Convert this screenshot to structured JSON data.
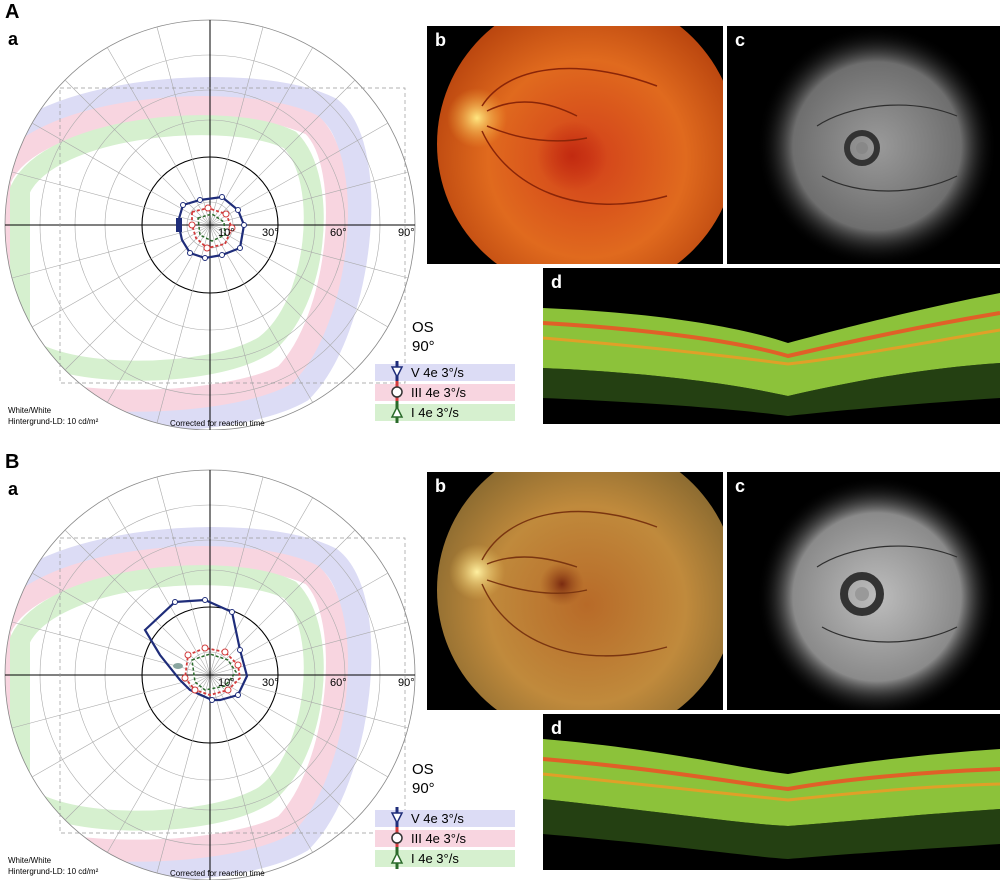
{
  "figure": {
    "panels": [
      {
        "id": "A",
        "label": "A",
        "sub_labels": {
          "a": "a",
          "b": "b",
          "c": "c",
          "d": "d"
        },
        "perimetry": {
          "axis_ticks": [
            "10°",
            "30°",
            "60°",
            "90°"
          ],
          "background_note_1": "White/White",
          "background_note_2": "Hintergrund-LD: 10 cd/m²",
          "correction_note": "Corrected for reaction time",
          "eye": "OS",
          "eye_range": "90°"
        },
        "legend": [
          {
            "label": "V 4e  3°/s",
            "color": "#1f2d7a",
            "band": "#dcdcf5",
            "symbol": "triangle-down-icon"
          },
          {
            "label": "III 4e  3°/s",
            "color": "#d23b3b",
            "band": "#f8d5e0",
            "symbol": "circle-icon"
          },
          {
            "label": "I 4e  3°/s",
            "color": "#2a6a2a",
            "band": "#d6f0cf",
            "symbol": "triangle-up-icon"
          }
        ]
      },
      {
        "id": "B",
        "label": "B",
        "sub_labels": {
          "a": "a",
          "b": "b",
          "c": "c",
          "d": "d"
        },
        "perimetry": {
          "axis_ticks": [
            "10°",
            "30°",
            "60°",
            "90°"
          ],
          "background_note_1": "White/White",
          "background_note_2": "Hintergrund-LD: 10 cd/m²",
          "correction_note": "Corrected for reaction time",
          "eye": "OS",
          "eye_range": "90°"
        },
        "legend": [
          {
            "label": "V 4e  3°/s",
            "color": "#1f2d7a",
            "band": "#dcdcf5",
            "symbol": "triangle-down-icon"
          },
          {
            "label": "III 4e  3°/s",
            "color": "#d23b3b",
            "band": "#f8d5e0",
            "symbol": "circle-icon"
          },
          {
            "label": "I 4e  3°/s",
            "color": "#2a6a2a",
            "band": "#d6f0cf",
            "symbol": "triangle-up-icon"
          }
        ]
      }
    ]
  }
}
